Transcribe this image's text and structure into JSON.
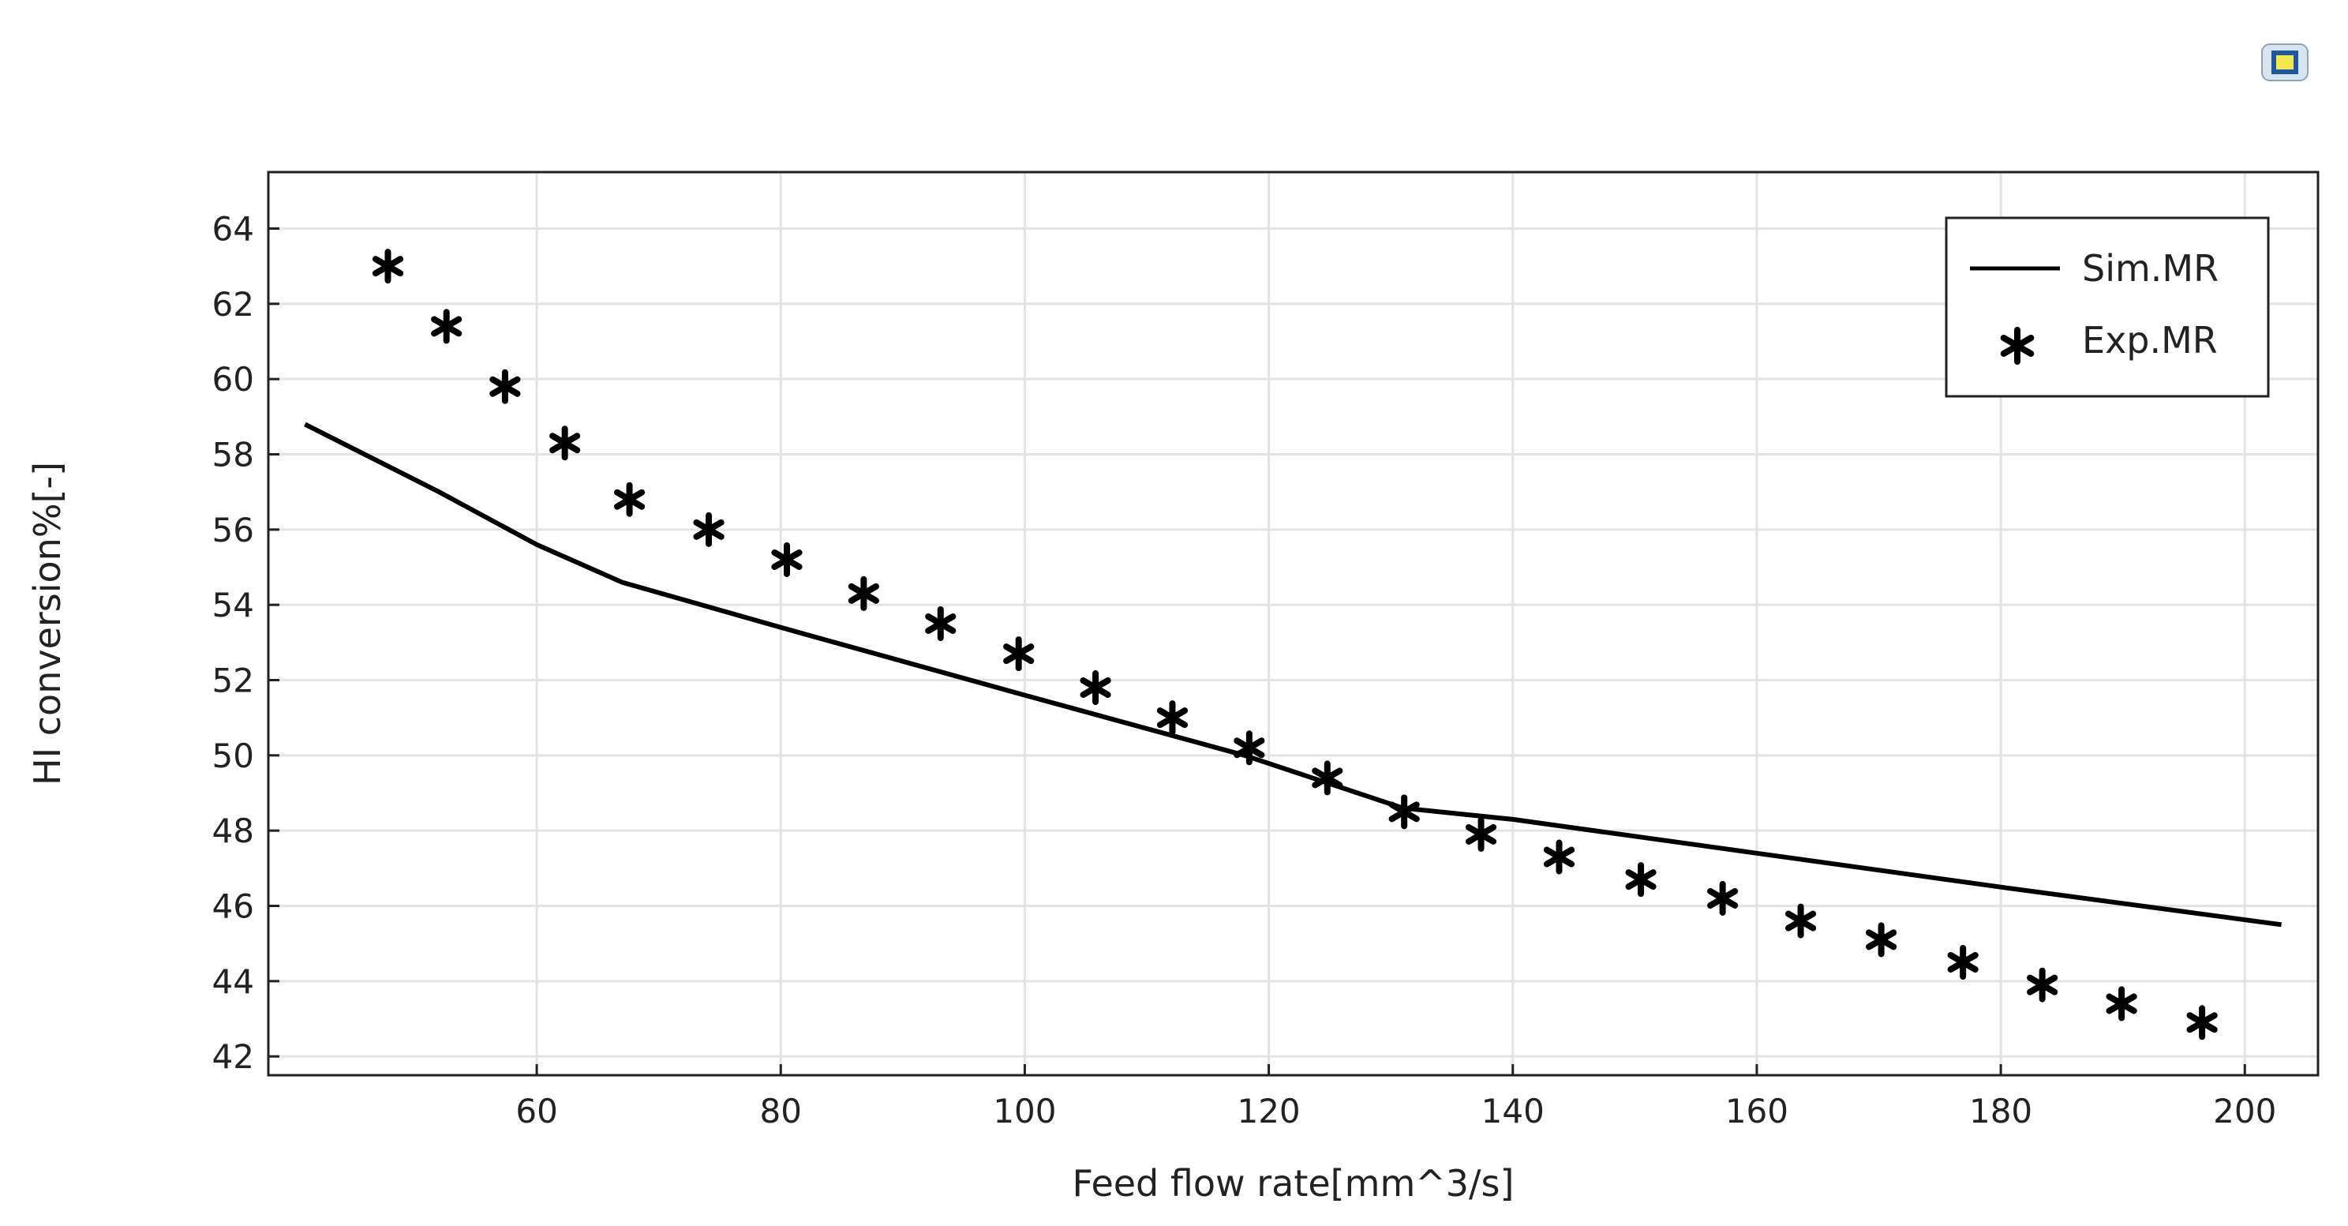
{
  "chart_data": {
    "type": "line",
    "title": "",
    "xlabel": "Feed flow rate[mm^3/s]",
    "ylabel": "HI conversion%[-]",
    "xlim": [
      38,
      206
    ],
    "ylim": [
      41.5,
      65.5
    ],
    "xticks": [
      60,
      80,
      100,
      120,
      140,
      160,
      180,
      200
    ],
    "yticks": [
      42,
      44,
      46,
      48,
      50,
      52,
      54,
      56,
      58,
      60,
      62,
      64
    ],
    "grid": true,
    "legend_position": "top-right",
    "series": [
      {
        "name": "Sim.MR",
        "style": "line",
        "color": "#000000",
        "x": [
          41,
          52,
          60,
          67,
          80,
          100,
          118,
          131,
          140,
          160,
          180,
          203
        ],
        "y": [
          58.8,
          57.0,
          55.6,
          54.6,
          53.4,
          51.6,
          50.0,
          48.6,
          48.3,
          47.4,
          46.5,
          45.5
        ]
      },
      {
        "name": "Exp.MR",
        "style": "markers",
        "marker": "asterisk",
        "color": "#000000",
        "x": [
          47.8,
          52.6,
          57.4,
          62.3,
          67.6,
          74.1,
          80.5,
          86.8,
          93.1,
          99.5,
          105.8,
          112.1,
          118.4,
          124.8,
          131.1,
          137.4,
          143.8,
          150.5,
          157.2,
          163.6,
          170.2,
          176.9,
          183.4,
          189.9,
          196.5
        ],
        "y": [
          63.0,
          61.4,
          59.8,
          58.3,
          56.8,
          56.0,
          55.2,
          54.3,
          53.5,
          52.7,
          51.8,
          51.0,
          50.2,
          49.4,
          48.5,
          47.9,
          47.3,
          46.7,
          46.2,
          45.6,
          45.1,
          44.5,
          43.9,
          43.4,
          42.9
        ]
      }
    ]
  },
  "toolbar": {
    "camera_icon": "camera-icon"
  }
}
